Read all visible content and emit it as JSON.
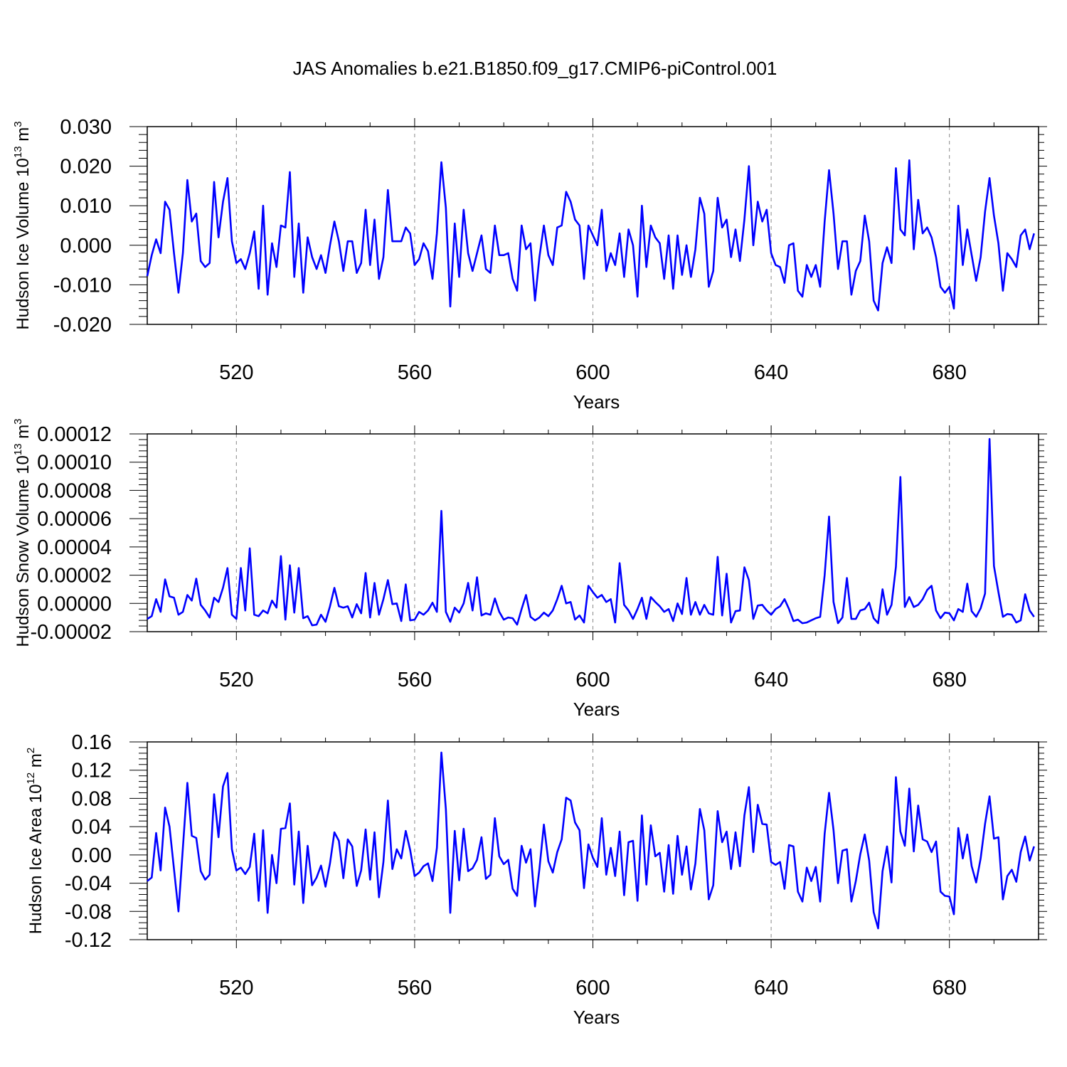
{
  "title": "JAS Anomalies b.e21.B1850.f09_g17.CMIP6-piControl.001",
  "colors": {
    "series": "#0000ff",
    "axis": "#000000",
    "grid": "#888888"
  },
  "chart_data": [
    {
      "type": "line",
      "ylabel": {
        "text": "Hudson Ice Volume 10",
        "sup": "13",
        "unit": " m",
        "unit_sup": "3"
      },
      "xlabel": "Years",
      "xlim": [
        500,
        700
      ],
      "ylim": [
        -0.02,
        0.03
      ],
      "grid": "vertical dashed at major x ticks",
      "x_ticks": [
        520,
        560,
        600,
        640,
        680
      ],
      "x_tick_labels": [
        "520",
        "560",
        "600",
        "640",
        "680"
      ],
      "y_ticks": [
        -0.02,
        -0.01,
        0.0,
        0.01,
        0.02,
        0.03
      ],
      "y_tick_labels": [
        "-0.020",
        "-0.010",
        "0.000",
        "0.010",
        "0.020",
        "0.030"
      ],
      "x_start": 500,
      "x_step": 1,
      "series": [
        {
          "values": [
            -0.0078,
            -0.0025,
            0.0015,
            -0.002,
            0.011,
            0.009,
            -0.002,
            -0.012,
            -0.002,
            0.0165,
            0.006,
            0.008,
            -0.004,
            -0.0055,
            -0.0045,
            0.016,
            0.002,
            0.011,
            0.017,
            0.001,
            -0.0045,
            -0.0035,
            -0.006,
            -0.002,
            0.0035,
            -0.011,
            0.01,
            -0.0125,
            0.0005,
            -0.0055,
            0.005,
            0.0045,
            0.0185,
            -0.008,
            0.0055,
            -0.012,
            0.002,
            -0.003,
            -0.006,
            -0.0025,
            -0.007,
            0.0,
            0.006,
            0.001,
            -0.0065,
            0.001,
            0.001,
            -0.007,
            -0.0045,
            0.009,
            -0.005,
            0.0065,
            -0.0085,
            -0.003,
            0.014,
            0.001,
            0.001,
            0.001,
            0.0045,
            0.003,
            -0.005,
            -0.0035,
            0.0005,
            -0.0015,
            -0.0085,
            0.003,
            0.021,
            0.0095,
            -0.0155,
            0.0055,
            -0.008,
            0.009,
            -0.002,
            -0.0065,
            -0.002,
            0.0025,
            -0.006,
            -0.007,
            0.005,
            -0.0025,
            -0.0025,
            -0.002,
            -0.0085,
            -0.0115,
            0.005,
            -0.001,
            0.0005,
            -0.014,
            -0.003,
            0.005,
            -0.0025,
            -0.005,
            0.0045,
            0.005,
            0.0135,
            0.011,
            0.0065,
            0.005,
            -0.0085,
            0.005,
            0.0025,
            0.0,
            0.009,
            -0.0065,
            -0.002,
            -0.005,
            0.003,
            -0.008,
            0.004,
            0.0,
            -0.013,
            0.01,
            -0.0055,
            0.005,
            0.002,
            0.0005,
            -0.0085,
            0.0025,
            -0.011,
            0.0025,
            -0.0075,
            0.0,
            -0.008,
            -0.001,
            0.012,
            0.008,
            -0.0105,
            -0.0065,
            0.012,
            0.0045,
            0.0065,
            -0.003,
            0.004,
            -0.004,
            0.0065,
            0.02,
            0.0,
            0.011,
            0.006,
            0.009,
            -0.002,
            -0.005,
            -0.0055,
            -0.0095,
            0.0,
            0.0005,
            -0.0115,
            -0.013,
            -0.005,
            -0.008,
            -0.005,
            -0.0105,
            0.006,
            0.019,
            0.008,
            -0.006,
            0.001,
            0.001,
            -0.0125,
            -0.0065,
            -0.004,
            0.0075,
            0.001,
            -0.014,
            -0.0165,
            -0.0045,
            -0.0005,
            -0.0045,
            0.0195,
            0.004,
            0.0025,
            0.0215,
            -0.001,
            0.0115,
            0.003,
            0.0045,
            0.002,
            -0.003,
            -0.0105,
            -0.012,
            -0.0105,
            -0.016,
            0.01,
            -0.005,
            0.004,
            -0.0025,
            -0.009,
            -0.003,
            0.0085,
            0.017,
            0.0075,
            0.0005,
            -0.0115,
            -0.002,
            -0.0035,
            -0.0055,
            0.0025,
            0.004,
            -0.001,
            0.003
          ]
        }
      ]
    },
    {
      "type": "line",
      "ylabel": {
        "text": "Hudson Snow Volume 10",
        "sup": "13",
        "unit": " m",
        "unit_sup": "3"
      },
      "xlabel": "Years",
      "xlim": [
        500,
        700
      ],
      "ylim": [
        -2e-05,
        0.00012
      ],
      "grid": "vertical dashed at major x ticks",
      "x_ticks": [
        520,
        560,
        600,
        640,
        680
      ],
      "x_tick_labels": [
        "520",
        "560",
        "600",
        "640",
        "680"
      ],
      "y_ticks": [
        -2e-05,
        0.0,
        2e-05,
        4e-05,
        6e-05,
        8e-05,
        0.0001,
        0.00012
      ],
      "y_tick_labels": [
        "-0.00002",
        "0.00000",
        "0.00002",
        "0.00004",
        "0.00006",
        "0.00008",
        "0.00010",
        "0.00012"
      ],
      "x_start": 500,
      "x_step": 1,
      "series": [
        {
          "values": [
            -1.1e-05,
            -9e-06,
            3e-06,
            -6e-06,
            1.7e-05,
            5e-06,
            4e-06,
            -8e-06,
            -6e-06,
            6e-06,
            2e-06,
            1.75e-05,
            -1e-06,
            -5e-06,
            -1e-05,
            4e-06,
            1e-06,
            1.1e-05,
            2.5e-05,
            -8e-06,
            -1.1e-05,
            2.5e-05,
            -5e-06,
            3.9e-05,
            -8e-06,
            -9e-06,
            -5e-06,
            -7e-06,
            2e-06,
            -3e-06,
            3.35e-05,
            -1.15e-05,
            2.7e-05,
            -6.5e-06,
            2.5e-05,
            -1.05e-05,
            -9e-06,
            -1.55e-05,
            -1.5e-05,
            -8e-06,
            -1.3e-05,
            -2e-06,
            1.1e-05,
            -2e-06,
            -3e-06,
            -2e-06,
            -1e-05,
            -5e-07,
            -7e-06,
            2.15e-05,
            -1e-05,
            1.45e-05,
            -8e-06,
            3e-06,
            1.65e-05,
            -5e-07,
            0.0,
            -1.25e-05,
            1.35e-05,
            -1.2e-05,
            -1.15e-05,
            -6e-06,
            -8e-06,
            -5e-06,
            5e-07,
            -6e-06,
            6.55e-05,
            -6e-06,
            -1.3e-05,
            -3e-06,
            -6.5e-06,
            0.0,
            1.45e-05,
            -5e-06,
            1.85e-05,
            -8.5e-06,
            -7e-06,
            -8e-06,
            3.5e-06,
            -6e-06,
            -1.15e-05,
            -1e-05,
            -1.05e-05,
            -1.5e-05,
            -4e-06,
            6e-06,
            -9.5e-06,
            -1.2e-05,
            -1e-05,
            -6.5e-06,
            -9e-06,
            -5e-06,
            3e-06,
            1.25e-05,
            0.0,
            1e-06,
            -1.15e-05,
            -8.5e-06,
            -1.35e-05,
            1.25e-05,
            8e-06,
            4e-06,
            6e-06,
            1e-06,
            3e-06,
            -1.35e-05,
            2.85e-05,
            -1e-06,
            -5e-06,
            -1.1e-05,
            -4e-06,
            4e-06,
            -1.1e-05,
            4.5e-06,
            1e-06,
            -2e-06,
            -6e-06,
            -4e-06,
            -1.25e-05,
            0.0,
            -7.5e-06,
            1.8e-05,
            -8e-06,
            1e-06,
            -8e-06,
            -1e-06,
            -7e-06,
            -8e-06,
            3.3e-05,
            -8.5e-06,
            2.1e-05,
            -1.35e-05,
            -5.5e-06,
            -5e-06,
            2.55e-05,
            1.65e-05,
            -1.1e-05,
            -1.5e-06,
            -1e-06,
            -5e-06,
            -8e-06,
            -4e-06,
            -2e-06,
            3e-06,
            -4e-06,
            -1.25e-05,
            -1.15e-05,
            -1.4e-05,
            -1.35e-05,
            -1.2e-05,
            -1.05e-05,
            -9.5e-06,
            2e-05,
            6.15e-05,
            1e-06,
            -1.4e-05,
            -1e-05,
            1.8e-05,
            -1.1e-05,
            -1.1e-05,
            -5e-06,
            -4e-06,
            5e-07,
            -1.05e-05,
            -1.4e-05,
            1e-05,
            -8e-06,
            -1e-06,
            2.6e-05,
            8.95e-05,
            -2.5e-06,
            4.5e-06,
            -2.5e-06,
            -1e-06,
            3e-06,
            9.5e-06,
            1.25e-05,
            -5e-06,
            -1.05e-05,
            -6.5e-06,
            -7e-06,
            -1.2e-05,
            -4e-06,
            -6e-06,
            1.4e-05,
            -5.5e-06,
            -9.5e-06,
            -3.5e-06,
            7e-06,
            0.0001165,
            2.65e-05,
            8e-06,
            -9.5e-06,
            -7.5e-06,
            -8e-06,
            -1.35e-05,
            -1.2e-05,
            6.5e-06,
            -5e-06,
            -9.5e-06
          ]
        }
      ]
    },
    {
      "type": "line",
      "ylabel": {
        "text": "Hudson Ice Area 10",
        "sup": "12",
        "unit": " m",
        "unit_sup": "2"
      },
      "xlabel": "Years",
      "xlim": [
        500,
        700
      ],
      "ylim": [
        -0.12,
        0.16
      ],
      "grid": "vertical dashed at major x ticks",
      "x_ticks": [
        520,
        560,
        600,
        640,
        680
      ],
      "x_tick_labels": [
        "520",
        "560",
        "600",
        "640",
        "680"
      ],
      "y_ticks": [
        -0.12,
        -0.08,
        -0.04,
        0.0,
        0.04,
        0.08,
        0.12,
        0.16
      ],
      "y_tick_labels": [
        "-0.12",
        "-0.08",
        "-0.04",
        "0.00",
        "0.04",
        "0.08",
        "0.12",
        "0.16"
      ],
      "x_start": 500,
      "x_step": 1,
      "series": [
        {
          "values": [
            -0.037,
            -0.032,
            0.031,
            -0.022,
            0.067,
            0.04,
            -0.02,
            -0.08,
            0.01,
            0.102,
            0.027,
            0.024,
            -0.023,
            -0.035,
            -0.028,
            0.086,
            0.025,
            0.097,
            0.116,
            0.008,
            -0.022,
            -0.018,
            -0.027,
            -0.017,
            0.03,
            -0.065,
            0.035,
            -0.082,
            0.0,
            -0.04,
            0.037,
            0.038,
            0.073,
            -0.042,
            0.033,
            -0.068,
            0.013,
            -0.043,
            -0.032,
            -0.015,
            -0.045,
            -0.012,
            0.032,
            0.02,
            -0.033,
            0.022,
            0.012,
            -0.044,
            -0.022,
            0.036,
            -0.035,
            0.032,
            -0.06,
            -0.01,
            0.077,
            -0.02,
            0.008,
            -0.005,
            0.034,
            0.007,
            -0.03,
            -0.025,
            -0.016,
            -0.012,
            -0.037,
            0.01,
            0.145,
            0.065,
            -0.082,
            0.034,
            -0.036,
            0.037,
            -0.023,
            -0.019,
            -0.007,
            0.025,
            -0.034,
            -0.028,
            0.052,
            -0.002,
            -0.013,
            -0.007,
            -0.048,
            -0.058,
            0.013,
            -0.011,
            0.008,
            -0.073,
            -0.02,
            0.043,
            -0.009,
            -0.025,
            0.004,
            0.022,
            0.081,
            0.077,
            0.046,
            0.035,
            -0.047,
            0.015,
            -0.004,
            -0.017,
            0.052,
            -0.028,
            0.01,
            -0.03,
            0.033,
            -0.057,
            0.018,
            0.02,
            -0.065,
            0.056,
            -0.042,
            0.042,
            -0.002,
            0.003,
            -0.052,
            0.014,
            -0.055,
            0.027,
            -0.028,
            0.012,
            -0.049,
            -0.012,
            0.065,
            0.035,
            -0.063,
            -0.043,
            0.062,
            0.018,
            0.033,
            -0.02,
            0.032,
            -0.016,
            0.056,
            0.096,
            0.004,
            0.071,
            0.044,
            0.043,
            -0.01,
            -0.014,
            -0.01,
            -0.048,
            0.014,
            0.012,
            -0.052,
            -0.066,
            -0.018,
            -0.037,
            -0.017,
            -0.066,
            0.03,
            0.088,
            0.035,
            -0.04,
            0.006,
            0.008,
            -0.066,
            -0.037,
            0.001,
            0.029,
            -0.008,
            -0.081,
            -0.104,
            -0.023,
            0.012,
            -0.039,
            0.11,
            0.033,
            0.013,
            0.094,
            0.005,
            0.07,
            0.022,
            0.019,
            0.004,
            0.019,
            -0.052,
            -0.058,
            -0.059,
            -0.084,
            0.038,
            -0.005,
            0.029,
            -0.016,
            -0.039,
            -0.005,
            0.044,
            0.083,
            0.023,
            0.025,
            -0.063,
            -0.03,
            -0.021,
            -0.038,
            0.004,
            0.026,
            -0.008,
            0.012
          ]
        }
      ]
    }
  ]
}
